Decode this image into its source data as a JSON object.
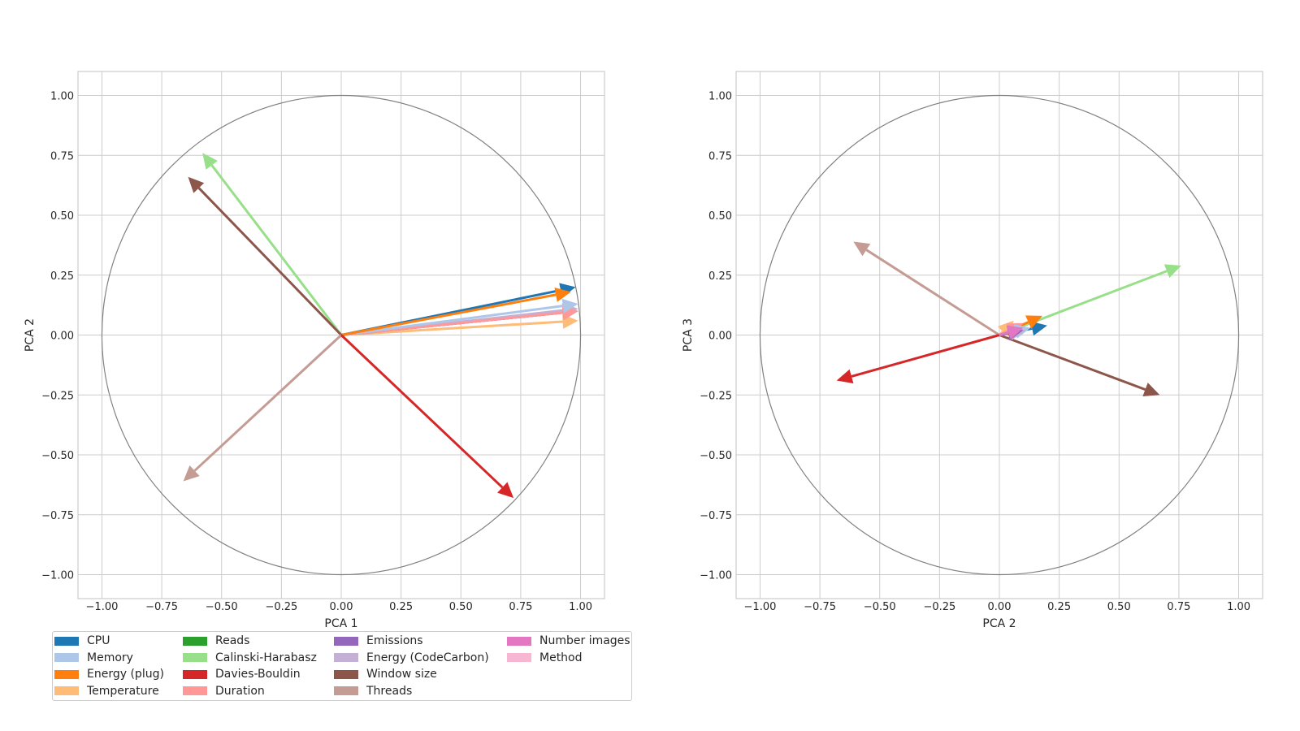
{
  "chart_data": [
    {
      "type": "vector",
      "xlabel": "PCA 1",
      "ylabel": "PCA 2",
      "xlim": [
        -1.1,
        1.1
      ],
      "ylim": [
        -1.1,
        1.1
      ],
      "xticks": [
        -1.0,
        -0.75,
        -0.5,
        -0.25,
        0.0,
        0.25,
        0.5,
        0.75,
        1.0
      ],
      "yticks": [
        -1.0,
        -0.75,
        -0.5,
        -0.25,
        0.0,
        0.25,
        0.5,
        0.75,
        1.0
      ],
      "grid": true,
      "unit_circle": true,
      "vectors": [
        {
          "name": "Temperature",
          "x": 0.99,
          "y": 0.06
        },
        {
          "name": "Number images",
          "x": 0.99,
          "y": 0.1
        },
        {
          "name": "Emissions",
          "x": 0.99,
          "y": 0.1
        },
        {
          "name": "Energy (CodeCarbon)",
          "x": 0.99,
          "y": 0.11
        },
        {
          "name": "Duration",
          "x": 0.99,
          "y": 0.1
        },
        {
          "name": "Memory",
          "x": 0.99,
          "y": 0.13
        },
        {
          "name": "CPU",
          "x": 0.98,
          "y": 0.2
        },
        {
          "name": "Energy (plug)",
          "x": 0.96,
          "y": 0.18
        },
        {
          "name": "Calinski-Harabasz",
          "x": -0.58,
          "y": 0.76
        },
        {
          "name": "Window size",
          "x": -0.64,
          "y": 0.66
        },
        {
          "name": "Threads",
          "x": -0.66,
          "y": -0.61
        },
        {
          "name": "Davies-Bouldin",
          "x": 0.72,
          "y": -0.68
        }
      ]
    },
    {
      "type": "vector",
      "xlabel": "PCA 2",
      "ylabel": "PCA 3",
      "xlim": [
        -1.1,
        1.1
      ],
      "ylim": [
        -1.1,
        1.1
      ],
      "xticks": [
        -1.0,
        -0.75,
        -0.5,
        -0.25,
        0.0,
        0.25,
        0.5,
        0.75,
        1.0
      ],
      "yticks": [
        -1.0,
        -0.75,
        -0.5,
        -0.25,
        0.0,
        0.25,
        0.5,
        0.75,
        1.0
      ],
      "grid": true,
      "unit_circle": true,
      "vectors": [
        {
          "name": "Calinski-Harabasz",
          "x": 0.76,
          "y": 0.29
        },
        {
          "name": "Window size",
          "x": 0.67,
          "y": -0.25
        },
        {
          "name": "Threads",
          "x": -0.61,
          "y": 0.39
        },
        {
          "name": "Davies-Bouldin",
          "x": -0.68,
          "y": -0.19
        },
        {
          "name": "CPU",
          "x": 0.2,
          "y": 0.04
        },
        {
          "name": "Energy (plug)",
          "x": 0.18,
          "y": 0.08
        },
        {
          "name": "Temperature",
          "x": 0.06,
          "y": 0.06
        },
        {
          "name": "Duration",
          "x": 0.1,
          "y": 0.05
        },
        {
          "name": "Memory",
          "x": 0.13,
          "y": 0.03
        },
        {
          "name": "Energy (CodeCarbon)",
          "x": 0.11,
          "y": 0.02
        },
        {
          "name": "Emissions",
          "x": 0.1,
          "y": 0.02
        },
        {
          "name": "Number images",
          "x": 0.1,
          "y": 0.03
        }
      ]
    }
  ],
  "legend": {
    "placement": "lower-left",
    "columns": 4,
    "items": [
      {
        "label": "CPU",
        "color": "#1f77b4"
      },
      {
        "label": "Memory",
        "color": "#aec7e8"
      },
      {
        "label": "Energy (plug)",
        "color": "#ff7f0e"
      },
      {
        "label": "Temperature",
        "color": "#ffbb78"
      },
      {
        "label": "Reads",
        "color": "#2ca02c"
      },
      {
        "label": "Calinski-Harabasz",
        "color": "#98df8a"
      },
      {
        "label": "Davies-Bouldin",
        "color": "#d62728"
      },
      {
        "label": "Duration",
        "color": "#ff9896"
      },
      {
        "label": "Emissions",
        "color": "#9467bd"
      },
      {
        "label": "Energy (CodeCarbon)",
        "color": "#c5b0d5"
      },
      {
        "label": "Window size",
        "color": "#8c564b"
      },
      {
        "label": "Threads",
        "color": "#c49c94"
      },
      {
        "label": "Number images",
        "color": "#e377c2"
      },
      {
        "label": "Method",
        "color": "#f7b6d2"
      }
    ]
  }
}
